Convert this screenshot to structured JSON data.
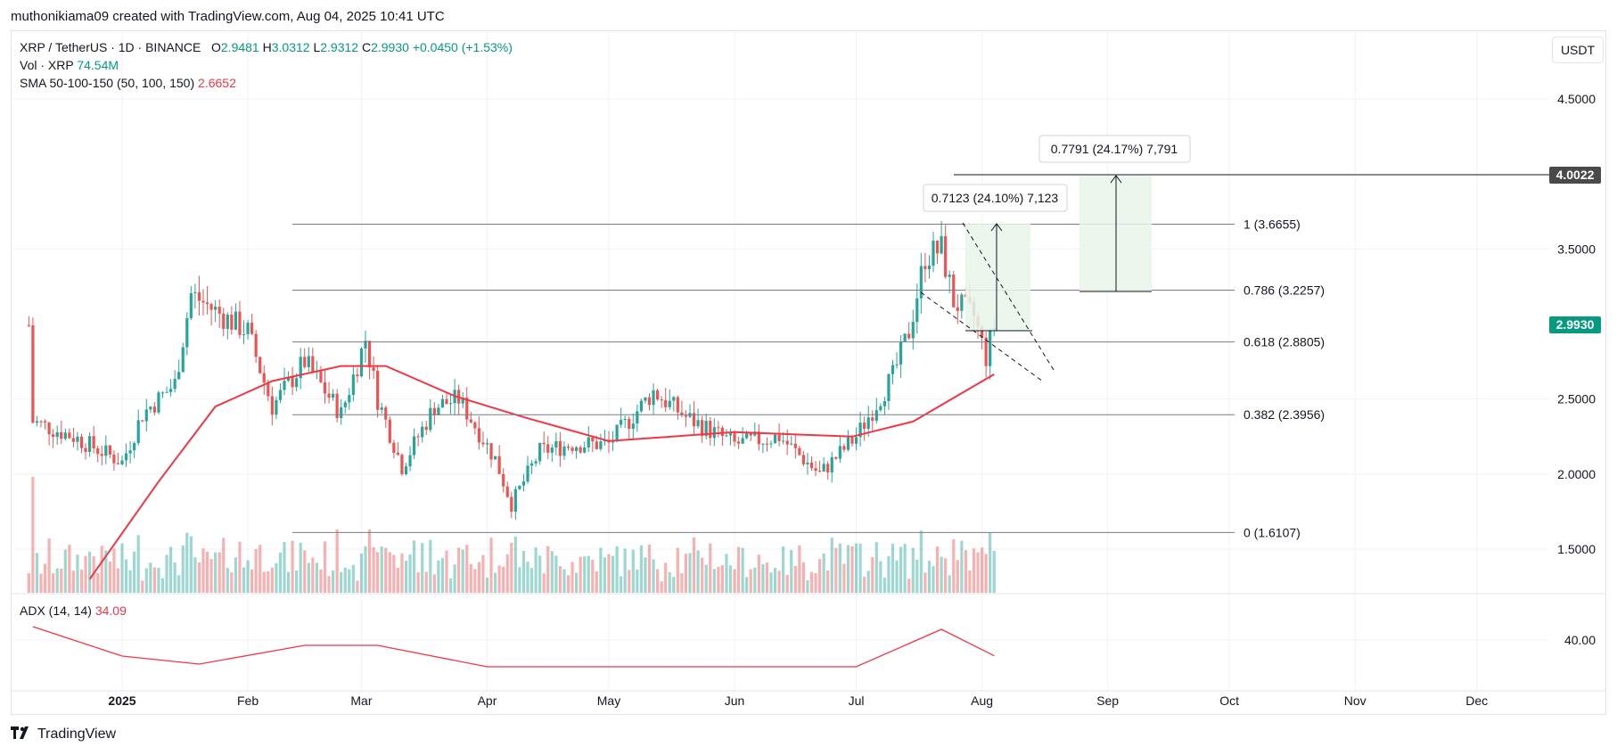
{
  "header": {
    "attribution": "muthonikiama09 created with TradingView.com, Aug 04, 2025 10:41 UTC"
  },
  "legend": {
    "symbol": "XRP / TetherUS · 1D · BINANCE",
    "o_label": "O",
    "o": "2.9481",
    "h_label": "H",
    "h": "3.0312",
    "l_label": "L",
    "l": "2.9312",
    "c_label": "C",
    "c": "2.9930",
    "change": "+0.0450 (+1.53%)",
    "vol_label": "Vol · XRP",
    "vol": "74.54M",
    "sma_label": "SMA 50-100-150 (50, 100, 150)",
    "sma": "2.6652",
    "adx_label": "ADX (14, 14)",
    "adx": "34.09"
  },
  "unit_button": "USDT",
  "price_axis": [
    "4.5000",
    "3.5000",
    "2.5000",
    "2.0000",
    "1.5000"
  ],
  "adx_axis": [
    "40.00"
  ],
  "price_tags": {
    "target": "4.0022",
    "last": "2.9930"
  },
  "time_axis": [
    "2025",
    "Feb",
    "Mar",
    "Apr",
    "May",
    "Jun",
    "Jul",
    "Aug",
    "Sep",
    "Oct",
    "Nov",
    "Dec"
  ],
  "fib_levels": [
    {
      "label": "1 (3.6655)",
      "price": 3.6655
    },
    {
      "label": "0.786 (3.2257)",
      "price": 3.2257
    },
    {
      "label": "0.618 (2.8805)",
      "price": 2.8805
    },
    {
      "label": "0.382 (2.3956)",
      "price": 2.3956
    },
    {
      "label": "0 (1.6107)",
      "price": 1.6107
    }
  ],
  "measure_labels": {
    "first": "0.7123 (24.10%) 7,123",
    "second": "0.7791 (24.17%) 7,791"
  },
  "footer": {
    "brand": "TradingView"
  },
  "colors": {
    "up": "#26a69a",
    "down": "#ef5350",
    "sma": "#f23645",
    "adx": "#f23645",
    "line": "#787b86",
    "zone": "#e8f5e9"
  },
  "chart_data": {
    "type": "candlestick",
    "title": "XRP / TetherUS · 1D · BINANCE",
    "price_range": [
      1.25,
      4.8
    ],
    "adx_range": [
      25,
      45
    ],
    "series": [
      {
        "name": "XRP / TetherUS",
        "ohlc_approx": [
          {
            "x": "2024-12-10",
            "close": 2.35
          },
          {
            "x": "2024-12-20",
            "close": 2.25
          },
          {
            "x": "2025-01-01",
            "close": 2.08
          },
          {
            "x": "2025-01-06",
            "close": 2.4
          },
          {
            "x": "2025-01-14",
            "close": 2.6
          },
          {
            "x": "2025-01-18",
            "close": 3.2
          },
          {
            "x": "2025-01-26",
            "close": 3.05
          },
          {
            "x": "2025-02-01",
            "close": 2.95
          },
          {
            "x": "2025-02-07",
            "close": 2.45
          },
          {
            "x": "2025-02-15",
            "close": 2.75
          },
          {
            "x": "2025-02-24",
            "close": 2.4
          },
          {
            "x": "2025-03-02",
            "close": 2.9
          },
          {
            "x": "2025-03-05",
            "close": 2.5
          },
          {
            "x": "2025-03-11",
            "close": 2.05
          },
          {
            "x": "2025-03-19",
            "close": 2.45
          },
          {
            "x": "2025-03-25",
            "close": 2.5
          },
          {
            "x": "2025-04-03",
            "close": 2.1
          },
          {
            "x": "2025-04-07",
            "close": 1.8
          },
          {
            "x": "2025-04-14",
            "close": 2.15
          },
          {
            "x": "2025-04-22",
            "close": 2.2
          },
          {
            "x": "2025-05-01",
            "close": 2.2
          },
          {
            "x": "2025-05-12",
            "close": 2.55
          },
          {
            "x": "2025-05-20",
            "close": 2.38
          },
          {
            "x": "2025-06-01",
            "close": 2.2
          },
          {
            "x": "2025-06-12",
            "close": 2.25
          },
          {
            "x": "2025-06-22",
            "close": 2.0
          },
          {
            "x": "2025-07-01",
            "close": 2.25
          },
          {
            "x": "2025-07-10",
            "close": 2.65
          },
          {
            "x": "2025-07-14",
            "close": 2.95
          },
          {
            "x": "2025-07-18",
            "close": 3.45
          },
          {
            "x": "2025-07-22",
            "close": 3.5
          },
          {
            "x": "2025-07-25",
            "close": 3.15
          },
          {
            "x": "2025-07-30",
            "close": 3.05
          },
          {
            "x": "2025-08-02",
            "close": 2.78
          },
          {
            "x": "2025-08-04",
            "close": 2.993
          }
        ]
      },
      {
        "name": "SMA 50-100-150 (50, 100, 150)",
        "values": [
          {
            "x": "2024-12-24",
            "y": 1.3
          },
          {
            "x": "2025-01-10",
            "y": 1.95
          },
          {
            "x": "2025-01-24",
            "y": 2.45
          },
          {
            "x": "2025-02-07",
            "y": 2.62
          },
          {
            "x": "2025-02-24",
            "y": 2.72
          },
          {
            "x": "2025-03-07",
            "y": 2.72
          },
          {
            "x": "2025-03-24",
            "y": 2.52
          },
          {
            "x": "2025-04-10",
            "y": 2.38
          },
          {
            "x": "2025-05-01",
            "y": 2.22
          },
          {
            "x": "2025-06-01",
            "y": 2.28
          },
          {
            "x": "2025-06-30",
            "y": 2.25
          },
          {
            "x": "2025-07-15",
            "y": 2.35
          },
          {
            "x": "2025-08-04",
            "y": 2.6652
          }
        ]
      },
      {
        "name": "ADX (14, 14)",
        "values": [
          {
            "x": "2024-12-10",
            "y": 45
          },
          {
            "x": "2025-01-01",
            "y": 34
          },
          {
            "x": "2025-01-20",
            "y": 31
          },
          {
            "x": "2025-02-15",
            "y": 38
          },
          {
            "x": "2025-03-05",
            "y": 38
          },
          {
            "x": "2025-04-01",
            "y": 30
          },
          {
            "x": "2025-05-01",
            "y": 30
          },
          {
            "x": "2025-06-01",
            "y": 30
          },
          {
            "x": "2025-07-01",
            "y": 30
          },
          {
            "x": "2025-07-22",
            "y": 44
          },
          {
            "x": "2025-08-04",
            "y": 34.09
          }
        ]
      }
    ],
    "xlabel": "",
    "ylabel": "",
    "grid": true,
    "legend": "top-left"
  }
}
